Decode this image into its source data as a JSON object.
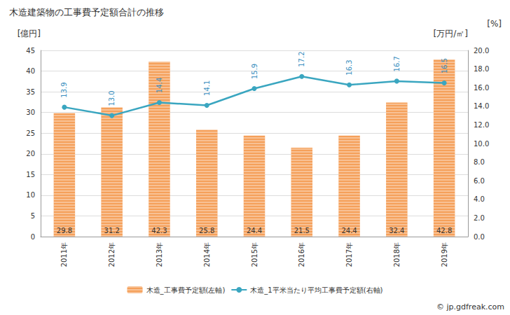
{
  "chart_data": {
    "type": "bar",
    "title": "木造建築物の工事費予定額合計の推移",
    "y_label": "[億円]",
    "y2_label": "[万円/㎡]",
    "annotations": [
      "[%]",
      "© jp.gdfreak.com"
    ],
    "categories": [
      "2011年",
      "2012年",
      "2013年",
      "2014年",
      "2015年",
      "2016年",
      "2017年",
      "2018年",
      "2019年"
    ],
    "series": [
      {
        "name": "木造_工事費予定額(左軸)",
        "type": "bar",
        "color": "#f5a05a",
        "values": [
          29.8,
          31.2,
          42.3,
          25.8,
          24.4,
          21.5,
          24.4,
          32.4,
          42.8
        ]
      },
      {
        "name": "木造_1平米当たり平均工事費予定額(右軸)",
        "type": "line",
        "axis": "y2",
        "color": "#3aa6c0",
        "marker": "circle",
        "values": [
          13.9,
          13.0,
          14.4,
          14.1,
          15.9,
          17.2,
          16.3,
          16.7,
          16.5
        ],
        "value_labels": [
          "13.9",
          "13.0",
          "14.4",
          "14.1",
          "15.9",
          "17.2",
          "16.3",
          "16.7",
          "16.5"
        ]
      }
    ],
    "ylim": [
      0,
      45
    ],
    "yticks": [
      0,
      5,
      10,
      15,
      20,
      25,
      30,
      35,
      40,
      45
    ],
    "y2lim": [
      0,
      20
    ],
    "y2ticks": [
      {
        "value": 0,
        "label": "0.0"
      },
      {
        "value": 2,
        "label": "2.0"
      },
      {
        "value": 4,
        "label": "4.0"
      },
      {
        "value": 6,
        "label": "6.0"
      },
      {
        "value": 8,
        "label": "8.0"
      },
      {
        "value": 10,
        "label": "10.0"
      },
      {
        "value": 12,
        "label": "12.0"
      },
      {
        "value": 14,
        "label": "14.0"
      },
      {
        "value": 16,
        "label": "16.0"
      },
      {
        "value": 18,
        "label": "18.0"
      },
      {
        "value": 20,
        "label": "20.0"
      }
    ],
    "grid": true,
    "legend": "bottom",
    "data_labels": true
  }
}
